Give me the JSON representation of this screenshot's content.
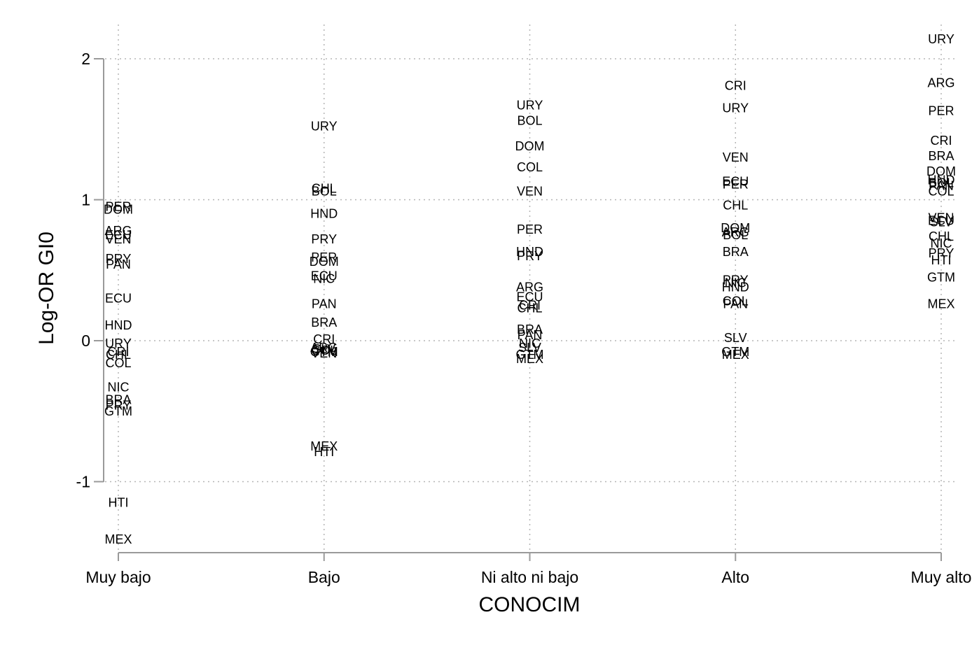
{
  "chart_data": {
    "type": "scatter",
    "xlabel": "CONOCIM",
    "ylabel": "Log-OR GI0",
    "categories": [
      "Muy bajo",
      "Bajo",
      "Ni alto ni bajo",
      "Alto",
      "Muy alto"
    ],
    "ylim": [
      -1.5,
      2.25
    ],
    "yticks": [
      2,
      1,
      0,
      -1
    ],
    "ytick_labels": [
      "2",
      "1",
      "0",
      "-1"
    ],
    "grid": true,
    "marker": "country code label",
    "points": [
      {
        "x": "Muy bajo",
        "label": "PER",
        "y": 0.95
      },
      {
        "x": "Muy bajo",
        "label": "DOM",
        "y": 0.93
      },
      {
        "x": "Muy bajo",
        "label": "ARG",
        "y": 0.78
      },
      {
        "x": "Muy bajo",
        "label": "ECU",
        "y": 0.75
      },
      {
        "x": "Muy bajo",
        "label": "VEN",
        "y": 0.72
      },
      {
        "x": "Muy bajo",
        "label": "PRY",
        "y": 0.58
      },
      {
        "x": "Muy bajo",
        "label": "PAN",
        "y": 0.54
      },
      {
        "x": "Muy bajo",
        "label": "ECU",
        "y": 0.3
      },
      {
        "x": "Muy bajo",
        "label": "HND",
        "y": 0.11
      },
      {
        "x": "Muy bajo",
        "label": "URY",
        "y": -0.02
      },
      {
        "x": "Muy bajo",
        "label": "CRI",
        "y": -0.08
      },
      {
        "x": "Muy bajo",
        "label": "CHL",
        "y": -0.1
      },
      {
        "x": "Muy bajo",
        "label": "COL",
        "y": -0.16
      },
      {
        "x": "Muy bajo",
        "label": "NIC",
        "y": -0.33
      },
      {
        "x": "Muy bajo",
        "label": "BRA",
        "y": -0.42
      },
      {
        "x": "Muy bajo",
        "label": "PRY",
        "y": -0.46
      },
      {
        "x": "Muy bajo",
        "label": "GTM",
        "y": -0.5
      },
      {
        "x": "Muy bajo",
        "label": "HTI",
        "y": -1.15
      },
      {
        "x": "Muy bajo",
        "label": "MEX",
        "y": -1.41
      },
      {
        "x": "Bajo",
        "label": "URY",
        "y": 1.52
      },
      {
        "x": "Bajo",
        "label": "CHL",
        "y": 1.08
      },
      {
        "x": "Bajo",
        "label": "BOL",
        "y": 1.06
      },
      {
        "x": "Bajo",
        "label": "HND",
        "y": 0.9
      },
      {
        "x": "Bajo",
        "label": "PRY",
        "y": 0.72
      },
      {
        "x": "Bajo",
        "label": "PER",
        "y": 0.59
      },
      {
        "x": "Bajo",
        "label": "DOM",
        "y": 0.56
      },
      {
        "x": "Bajo",
        "label": "ECU",
        "y": 0.46
      },
      {
        "x": "Bajo",
        "label": "NIC",
        "y": 0.44
      },
      {
        "x": "Bajo",
        "label": "PAN",
        "y": 0.26
      },
      {
        "x": "Bajo",
        "label": "BRA",
        "y": 0.13
      },
      {
        "x": "Bajo",
        "label": "CRI",
        "y": 0.01
      },
      {
        "x": "Bajo",
        "label": "ARG",
        "y": -0.05
      },
      {
        "x": "Bajo",
        "label": "SLV",
        "y": -0.06
      },
      {
        "x": "Bajo",
        "label": "COL",
        "y": -0.07
      },
      {
        "x": "Bajo",
        "label": "GTM",
        "y": -0.08
      },
      {
        "x": "Bajo",
        "label": "VEN",
        "y": -0.09
      },
      {
        "x": "Bajo",
        "label": "MEX",
        "y": -0.75
      },
      {
        "x": "Bajo",
        "label": "HTI",
        "y": -0.79
      },
      {
        "x": "Ni alto ni bajo",
        "label": "URY",
        "y": 1.67
      },
      {
        "x": "Ni alto ni bajo",
        "label": "BOL",
        "y": 1.56
      },
      {
        "x": "Ni alto ni bajo",
        "label": "DOM",
        "y": 1.38
      },
      {
        "x": "Ni alto ni bajo",
        "label": "COL",
        "y": 1.23
      },
      {
        "x": "Ni alto ni bajo",
        "label": "VEN",
        "y": 1.06
      },
      {
        "x": "Ni alto ni bajo",
        "label": "PER",
        "y": 0.79
      },
      {
        "x": "Ni alto ni bajo",
        "label": "HND",
        "y": 0.63
      },
      {
        "x": "Ni alto ni bajo",
        "label": "PRY",
        "y": 0.6
      },
      {
        "x": "Ni alto ni bajo",
        "label": "ARG",
        "y": 0.38
      },
      {
        "x": "Ni alto ni bajo",
        "label": "ECU",
        "y": 0.31
      },
      {
        "x": "Ni alto ni bajo",
        "label": "CRI",
        "y": 0.25
      },
      {
        "x": "Ni alto ni bajo",
        "label": "CHL",
        "y": 0.23
      },
      {
        "x": "Ni alto ni bajo",
        "label": "BRA",
        "y": 0.08
      },
      {
        "x": "Ni alto ni bajo",
        "label": "PAN",
        "y": 0.04
      },
      {
        "x": "Ni alto ni bajo",
        "label": "NIC",
        "y": -0.02
      },
      {
        "x": "Ni alto ni bajo",
        "label": "SLV",
        "y": -0.05
      },
      {
        "x": "Ni alto ni bajo",
        "label": "GTM",
        "y": -0.1
      },
      {
        "x": "Ni alto ni bajo",
        "label": "MEX",
        "y": -0.13
      },
      {
        "x": "Alto",
        "label": "CRI",
        "y": 1.81
      },
      {
        "x": "Alto",
        "label": "URY",
        "y": 1.65
      },
      {
        "x": "Alto",
        "label": "VEN",
        "y": 1.3
      },
      {
        "x": "Alto",
        "label": "ECU",
        "y": 1.13
      },
      {
        "x": "Alto",
        "label": "PER",
        "y": 1.11
      },
      {
        "x": "Alto",
        "label": "CHL",
        "y": 0.96
      },
      {
        "x": "Alto",
        "label": "DOM",
        "y": 0.8
      },
      {
        "x": "Alto",
        "label": "ARG",
        "y": 0.77
      },
      {
        "x": "Alto",
        "label": "BOL",
        "y": 0.75
      },
      {
        "x": "Alto",
        "label": "BRA",
        "y": 0.63
      },
      {
        "x": "Alto",
        "label": "PRY",
        "y": 0.43
      },
      {
        "x": "Alto",
        "label": "NIC",
        "y": 0.41
      },
      {
        "x": "Alto",
        "label": "HND",
        "y": 0.38
      },
      {
        "x": "Alto",
        "label": "COL",
        "y": 0.28
      },
      {
        "x": "Alto",
        "label": "PAN",
        "y": 0.26
      },
      {
        "x": "Alto",
        "label": "SLV",
        "y": 0.02
      },
      {
        "x": "Alto",
        "label": "GTM",
        "y": -0.08
      },
      {
        "x": "Alto",
        "label": "MEX",
        "y": -0.1
      },
      {
        "x": "Muy alto",
        "label": "URY",
        "y": 2.14
      },
      {
        "x": "Muy alto",
        "label": "ARG",
        "y": 1.83
      },
      {
        "x": "Muy alto",
        "label": "PER",
        "y": 1.63
      },
      {
        "x": "Muy alto",
        "label": "CRI",
        "y": 1.42
      },
      {
        "x": "Muy alto",
        "label": "BRA",
        "y": 1.31
      },
      {
        "x": "Muy alto",
        "label": "DOM",
        "y": 1.2
      },
      {
        "x": "Muy alto",
        "label": "HND",
        "y": 1.14
      },
      {
        "x": "Muy alto",
        "label": "BOL",
        "y": 1.12
      },
      {
        "x": "Muy alto",
        "label": "PAN",
        "y": 1.1
      },
      {
        "x": "Muy alto",
        "label": "COL",
        "y": 1.06
      },
      {
        "x": "Muy alto",
        "label": "VEN",
        "y": 0.87
      },
      {
        "x": "Muy alto",
        "label": "ECU",
        "y": 0.85
      },
      {
        "x": "Muy alto",
        "label": "SLV",
        "y": 0.84
      },
      {
        "x": "Muy alto",
        "label": "CHL",
        "y": 0.74
      },
      {
        "x": "Muy alto",
        "label": "NIC",
        "y": 0.69
      },
      {
        "x": "Muy alto",
        "label": "PRY",
        "y": 0.62
      },
      {
        "x": "Muy alto",
        "label": "HTI",
        "y": 0.57
      },
      {
        "x": "Muy alto",
        "label": "GTM",
        "y": 0.45
      },
      {
        "x": "Muy alto",
        "label": "MEX",
        "y": 0.26
      }
    ]
  }
}
